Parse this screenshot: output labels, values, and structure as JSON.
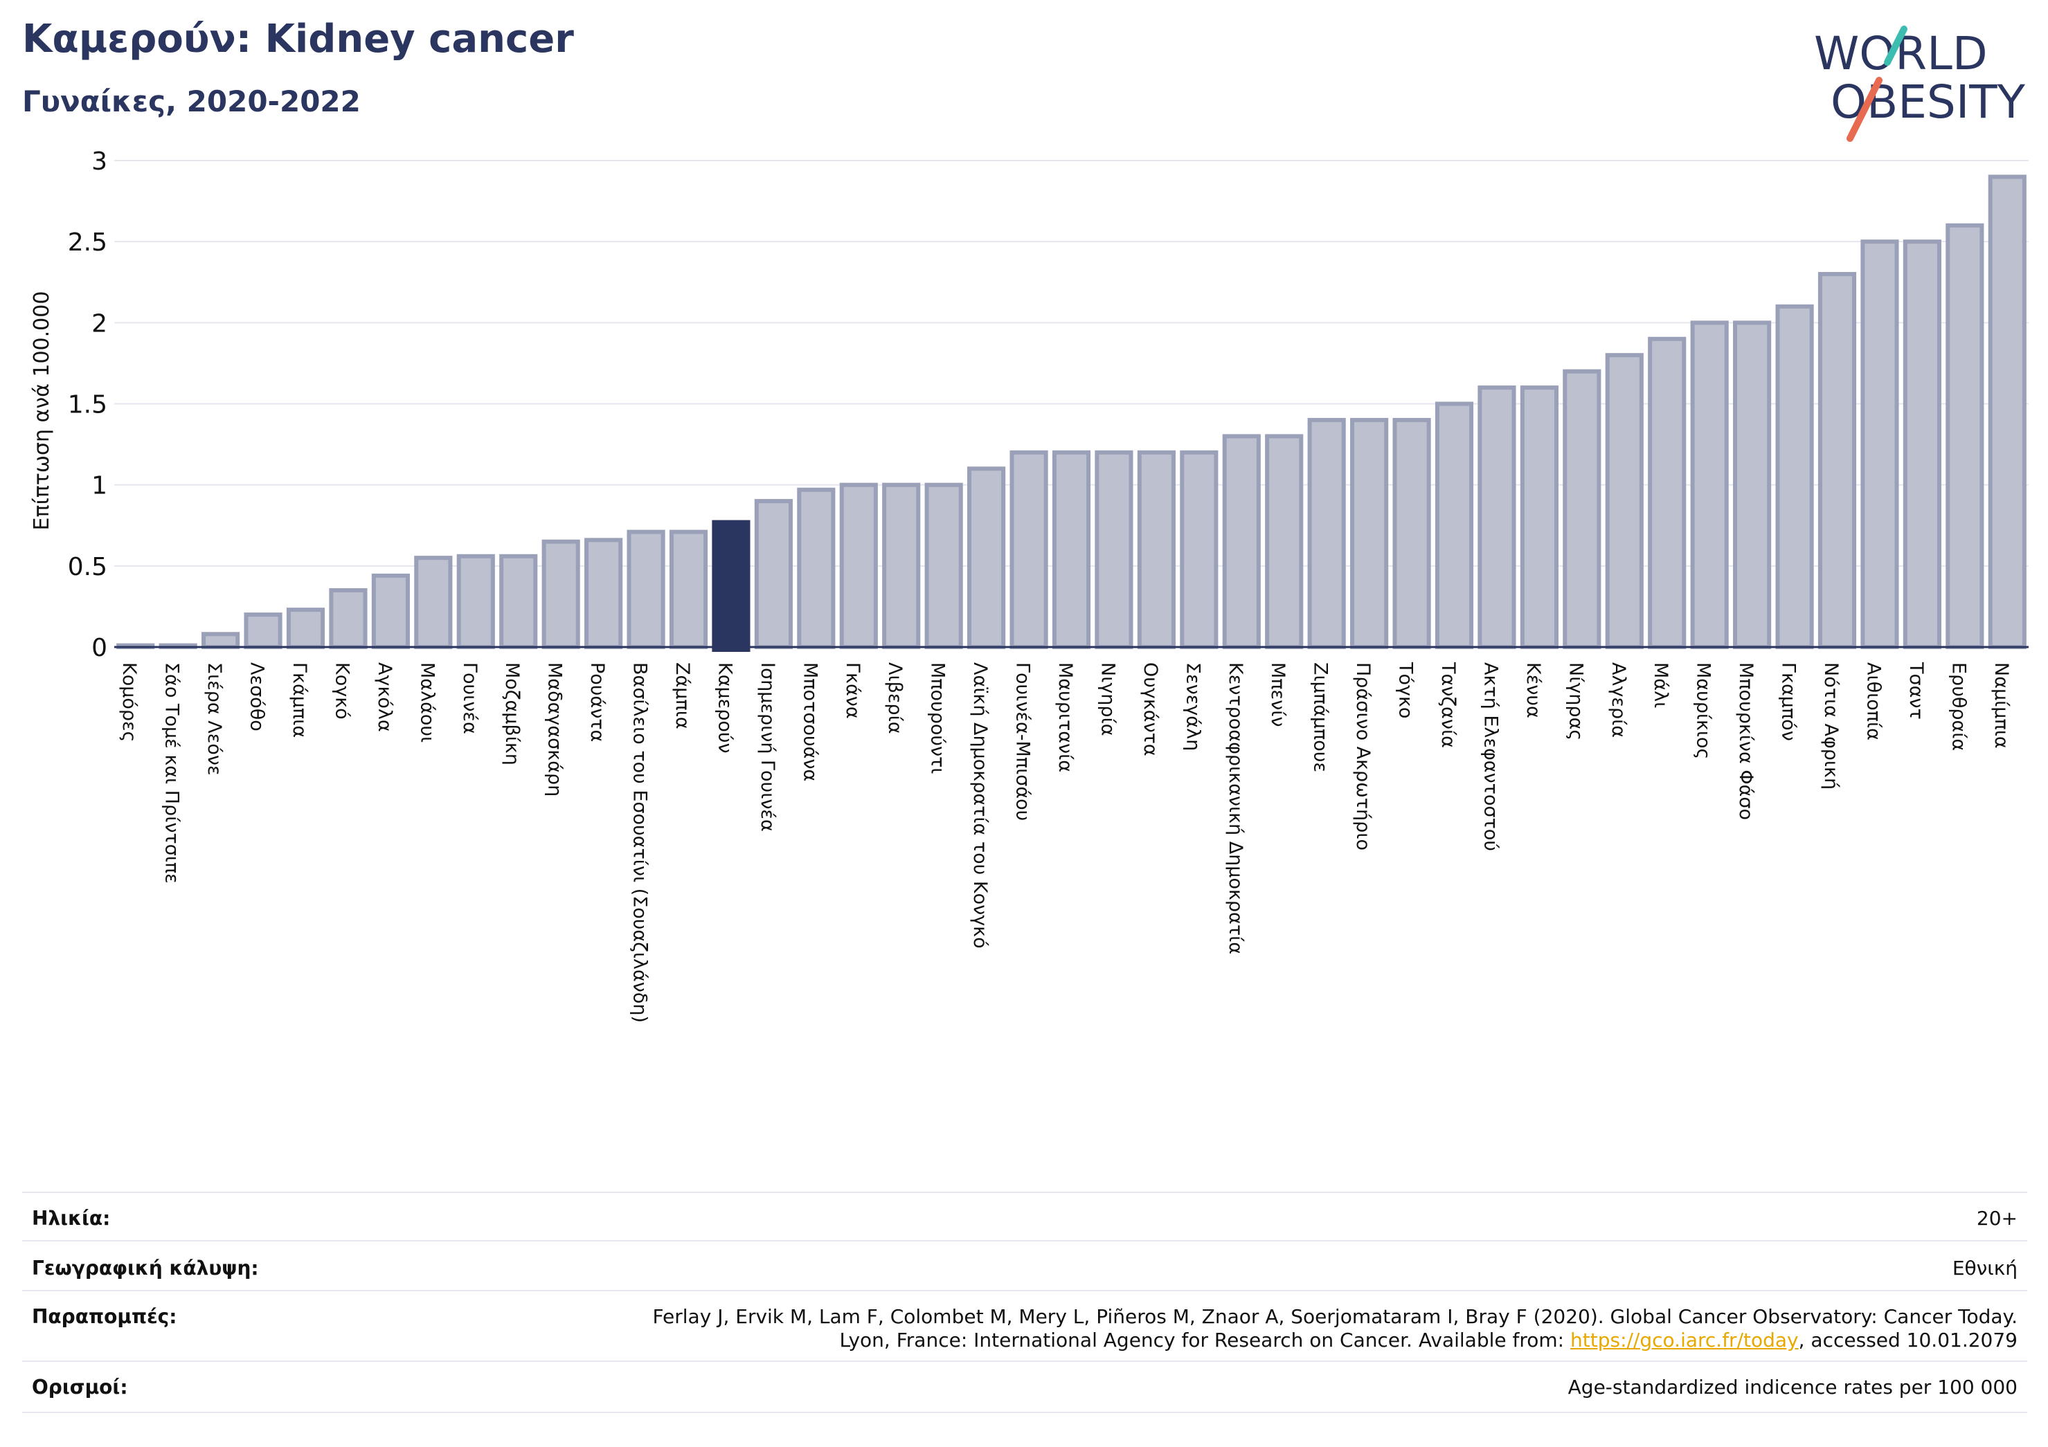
{
  "header": {
    "title": "Καμερούν: Kidney cancer",
    "subtitle": "Γυναίκες, 2020-2022"
  },
  "logo": {
    "line1": "WORLD",
    "line2": "OBESITY",
    "colors": {
      "text": "#2a3560",
      "slash_teal": "#3dbdb0",
      "slash_orange": "#e86a50"
    }
  },
  "chart_data": {
    "type": "bar",
    "ylabel": "Επίπτωση ανά 100.000",
    "ylim": [
      0,
      3
    ],
    "yticks": [
      "0",
      "0.5",
      "1",
      "1.5",
      "2",
      "2.5",
      "3"
    ],
    "grid": true,
    "highlight": "Καμερούν",
    "colors": {
      "bar": "#bcc0cf",
      "bar_edge": "#9aa0b8",
      "highlight": "#2a3560",
      "axis": "#2a3560",
      "grid": "#e6e6ee"
    },
    "categories": [
      "Κομόρες",
      "Σάο Τομέ και Πρίντσιπε",
      "Σιέρα Λεόνε",
      "Λεσόθο",
      "Γκάμπια",
      "Κογκό",
      "Αγκόλα",
      "Μαλάουι",
      "Γουινέα",
      "Μοζαμβίκη",
      "Μαδαγασκάρη",
      "Ρουάντα",
      "Βασίλειο του Εσουατίνι (Σουαζιλάνδη)",
      "Ζάμπια",
      "Καμερούν",
      "Ισημερινή Γουινέα",
      "Μποτσουάνα",
      "Γκάνα",
      "Λιβερία",
      "Μπουρούντι",
      "Λαϊκή Δημοκρατία του Κονγκό",
      "Γουινέα-Μπισάου",
      "Μαυριτανία",
      "Νιγηρία",
      "Ουγκάντα",
      "Σενεγάλη",
      "Κεντροαφρικανική Δημοκρατία",
      "Μπενίν",
      "Ζιμπάμπουε",
      "Πράσινο Ακρωτήριο",
      "Τόγκο",
      "Τανζανία",
      "Ακτή Ελεφαντοστού",
      "Κένυα",
      "Νίγηρας",
      "Αλγερία",
      "Μάλι",
      "Μαυρίκιος",
      "Μπουρκίνα Φάσο",
      "Γκαμπόν",
      "Νότια Αφρική",
      "Αιθιοπία",
      "Τσαντ",
      "Ερυθραία",
      "Ναμίμπια"
    ],
    "values": [
      0.01,
      0.01,
      0.08,
      0.2,
      0.23,
      0.35,
      0.44,
      0.55,
      0.56,
      0.56,
      0.65,
      0.66,
      0.71,
      0.71,
      0.77,
      0.9,
      0.97,
      1.0,
      1.0,
      1.0,
      1.1,
      1.2,
      1.2,
      1.2,
      1.2,
      1.2,
      1.3,
      1.3,
      1.4,
      1.4,
      1.4,
      1.5,
      1.6,
      1.6,
      1.7,
      1.8,
      1.9,
      2.0,
      2.0,
      2.1,
      2.3,
      2.5,
      2.5,
      2.6,
      2.9
    ]
  },
  "meta": {
    "age_label": "Ηλικία:",
    "age_value": "20+",
    "coverage_label": "Γεωγραφική κάλυψη:",
    "coverage_value": "Εθνική",
    "refs_label": "Παραπομπές:",
    "refs_line1": "Ferlay J, Ervik M, Lam F, Colombet M, Mery L, Piñeros M, Znaor A, Soerjomataram I, Bray F (2020). Global Cancer Observatory: Cancer Today.",
    "refs_line2_pre": "Lyon, France: International Agency for Research on Cancer. Available from: ",
    "refs_link": "https://gco.iarc.fr/today",
    "refs_line2_post": ", accessed 10.01.2079",
    "defs_label": "Ορισμοί:",
    "defs_value": "Age-standardized indicence rates per 100 000"
  }
}
